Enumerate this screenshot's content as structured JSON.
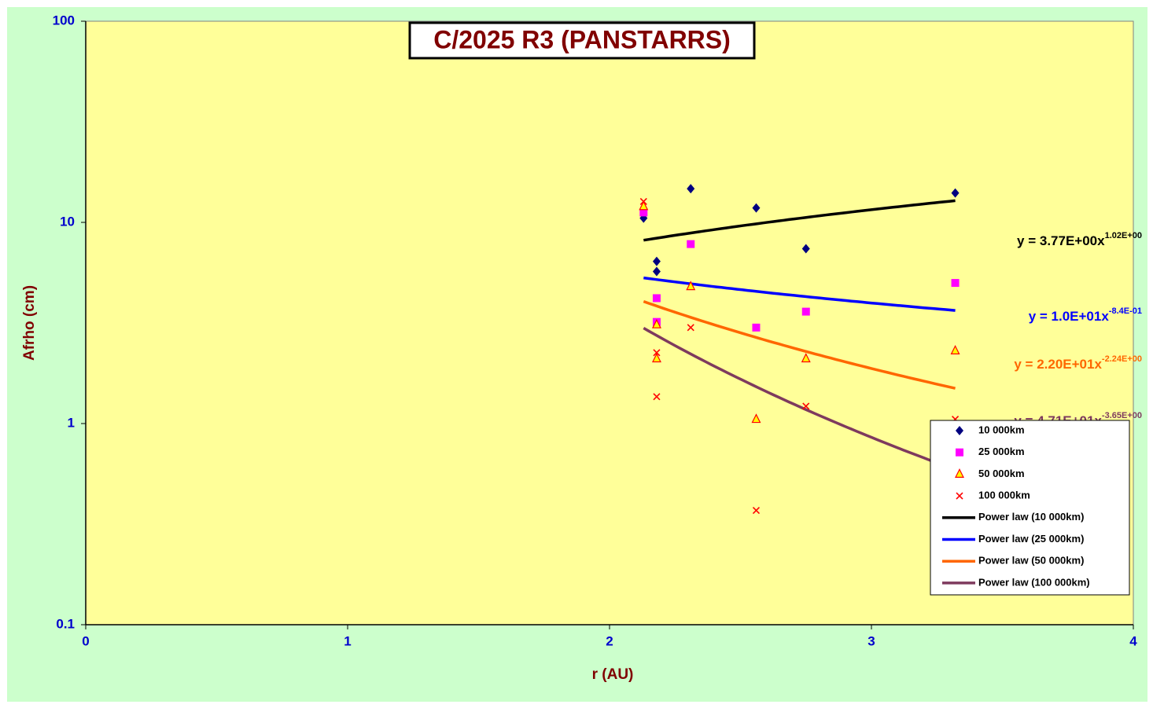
{
  "chart_data": {
    "type": "scatter",
    "title": "C/2025 R3 (PANSTARRS)",
    "x_label": "r (AU)",
    "y_label": "Afrho (cm)",
    "xlim": [
      0,
      4
    ],
    "xticks": [
      0,
      1,
      2,
      3,
      4
    ],
    "ylim": [
      0.1,
      100
    ],
    "yticks": [
      0.1,
      1,
      10,
      100
    ],
    "log_y": true,
    "legend": "lower right",
    "series": [
      {
        "name": "10 000km",
        "color": "#000080",
        "marker": "diamond",
        "x": [
          2.13,
          2.18,
          2.18,
          2.31,
          2.56,
          2.75,
          3.32
        ],
        "values": [
          10.5,
          6.4,
          5.7,
          14.7,
          11.8,
          7.4,
          14.0
        ]
      },
      {
        "name": "25 000km",
        "color": "#ff00ff",
        "marker": "square",
        "x": [
          2.13,
          2.18,
          2.18,
          2.31,
          2.56,
          2.75,
          3.32
        ],
        "values": [
          11.2,
          4.2,
          3.2,
          7.8,
          3.0,
          3.6,
          5.0
        ]
      },
      {
        "name": "50 000km",
        "color": "#ff0000",
        "marker": "triangle",
        "x": [
          2.13,
          2.18,
          2.18,
          2.31,
          2.56,
          2.75,
          3.32
        ],
        "values": [
          12.0,
          3.1,
          2.1,
          4.8,
          1.05,
          2.1,
          2.3
        ]
      },
      {
        "name": "100 000km",
        "color": "#ff0000",
        "marker": "cross",
        "x": [
          2.13,
          2.18,
          2.18,
          2.31,
          2.56,
          2.75,
          3.32
        ],
        "values": [
          12.7,
          2.25,
          1.36,
          3.0,
          0.37,
          1.22,
          1.05
        ]
      }
    ],
    "trendlines": [
      {
        "name": "Power law (10 000km)",
        "color": "#000000",
        "coefficient": 3.77,
        "exponent": 1.02,
        "equation": "y = 3.77E+00x",
        "exponent_label": "1.02E+00"
      },
      {
        "name": "Power law (25 000km)",
        "color": "#0000ff",
        "coefficient": 10,
        "exponent": -0.84,
        "equation": "y = 1.0E+01x",
        "exponent_label": "-8.4E-01"
      },
      {
        "name": "Power law (50 000km)",
        "color": "#ff6600",
        "coefficient": 22,
        "exponent": -2.24,
        "equation": "y = 2.20E+01x",
        "exponent_label": "-2.24E+00"
      },
      {
        "name": "Power law (100 000km)",
        "color": "#7e3a5e",
        "coefficient": 47.1,
        "exponent": -3.65,
        "equation": "y = 4.71E+01x",
        "exponent_label": "-3.65E+00"
      }
    ]
  }
}
